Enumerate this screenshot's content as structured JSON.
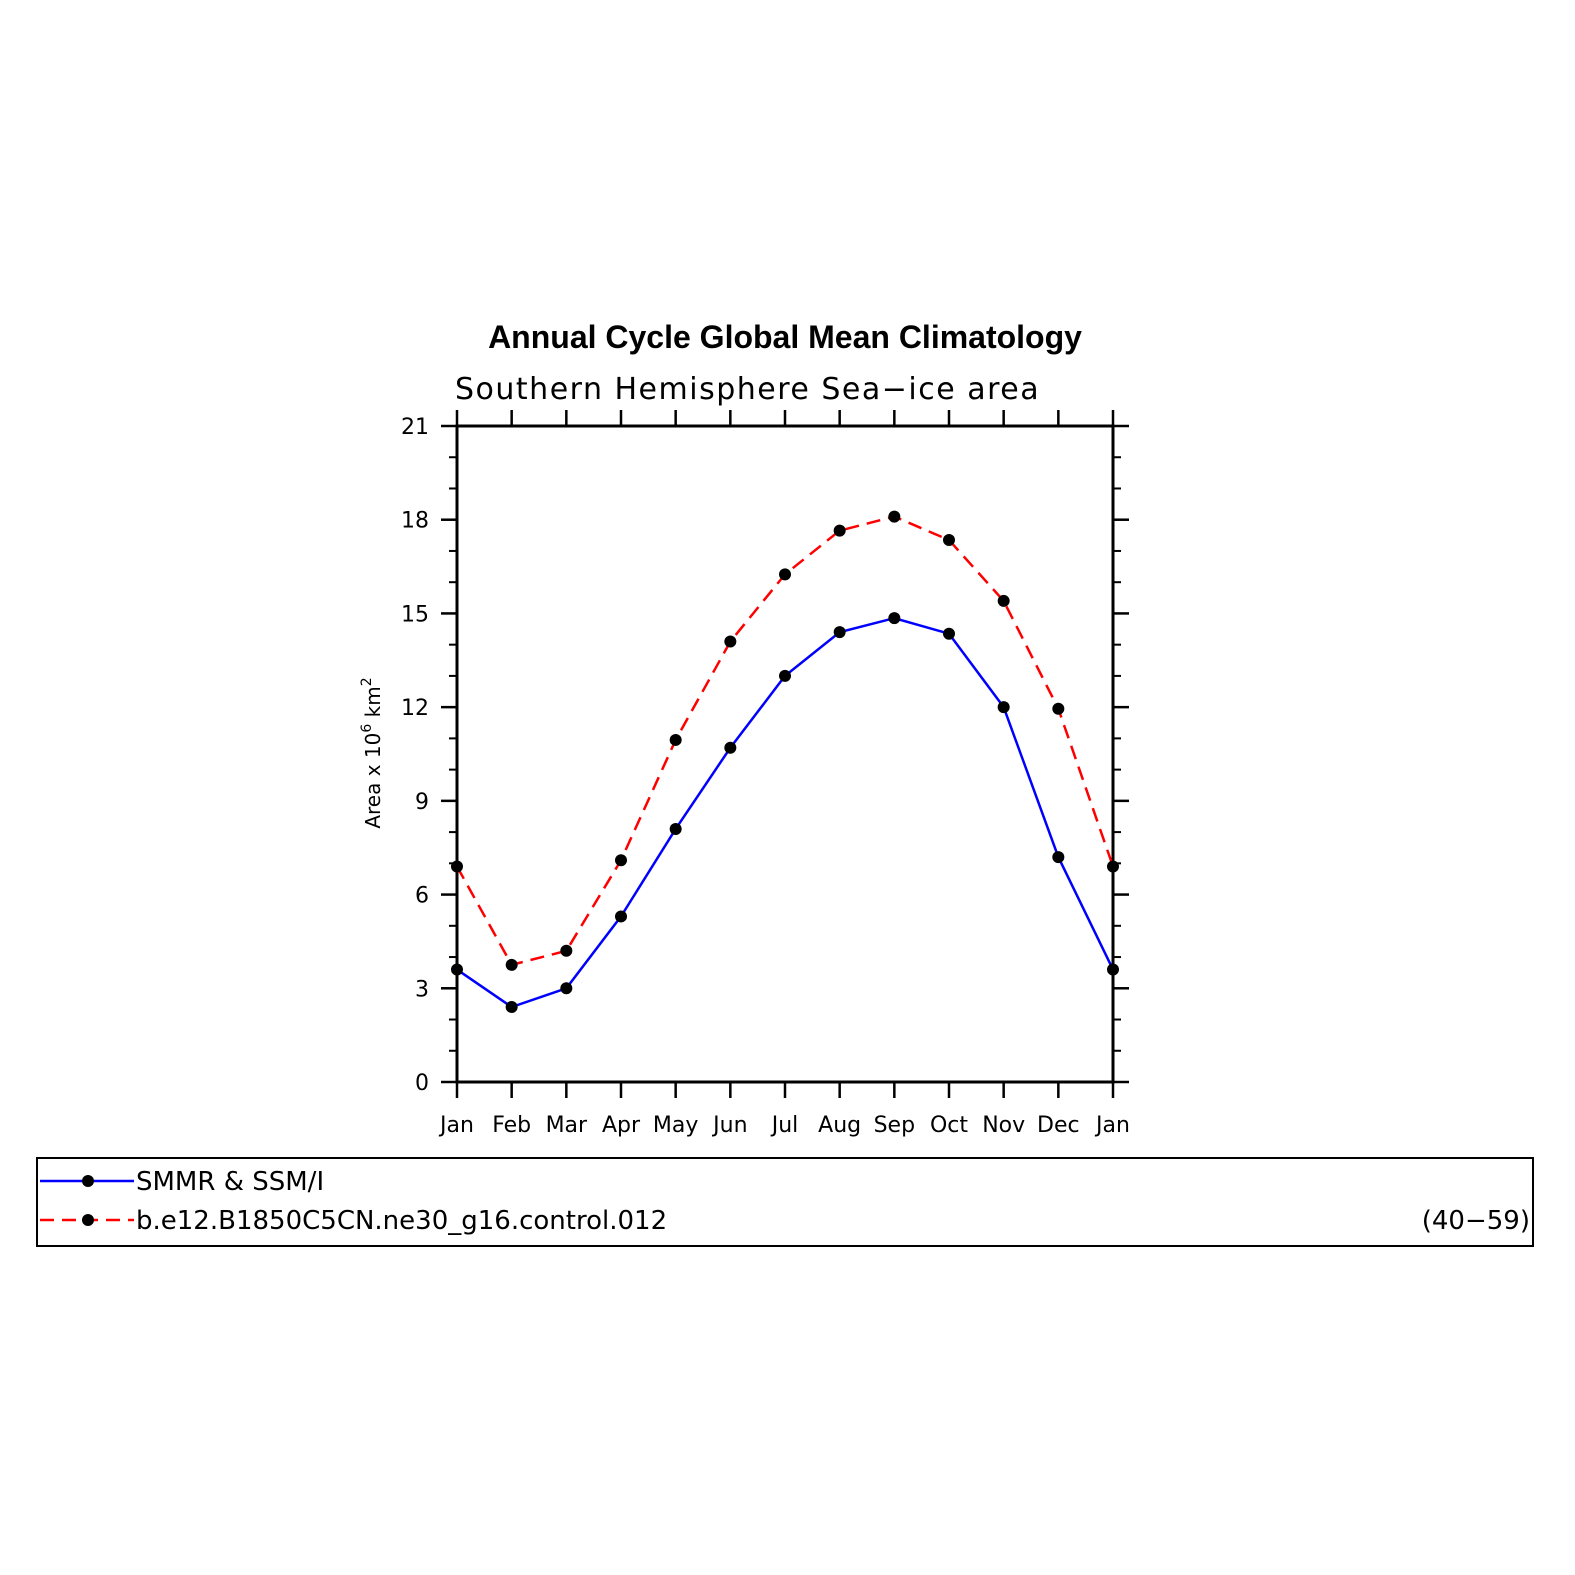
{
  "chart_data": {
    "type": "line",
    "title": "Annual Cycle Global Mean Climatology",
    "subtitle": "Southern Hemisphere Sea−ice area",
    "ylabel": {
      "prefix": "Area x 10",
      "exponent": "6",
      "unit": "km",
      "unit_exponent": "2"
    },
    "xlabel": "",
    "categories": [
      "Jan",
      "Feb",
      "Mar",
      "Apr",
      "May",
      "Jun",
      "Jul",
      "Aug",
      "Sep",
      "Oct",
      "Nov",
      "Dec",
      "Jan"
    ],
    "ylim": [
      0,
      21
    ],
    "yticks": [
      0,
      3,
      6,
      9,
      12,
      15,
      18,
      21
    ],
    "series": [
      {
        "name": "SMMR & SSM/I",
        "color": "#0000ff",
        "dash": "solid",
        "values": [
          3.6,
          2.4,
          3.0,
          5.3,
          8.1,
          10.7,
          13.0,
          14.4,
          14.85,
          14.35,
          12.0,
          7.2,
          3.6
        ]
      },
      {
        "name": "b.e12.B1850C5CN.ne30_g16.control.012",
        "color": "#ff0000",
        "dash": "dashed",
        "years": "(40−59)",
        "values": [
          6.9,
          3.75,
          4.2,
          7.1,
          10.95,
          14.1,
          16.25,
          17.65,
          18.1,
          17.35,
          15.4,
          11.95,
          6.9
        ]
      }
    ],
    "grid": false,
    "legend_position": "bottom"
  }
}
